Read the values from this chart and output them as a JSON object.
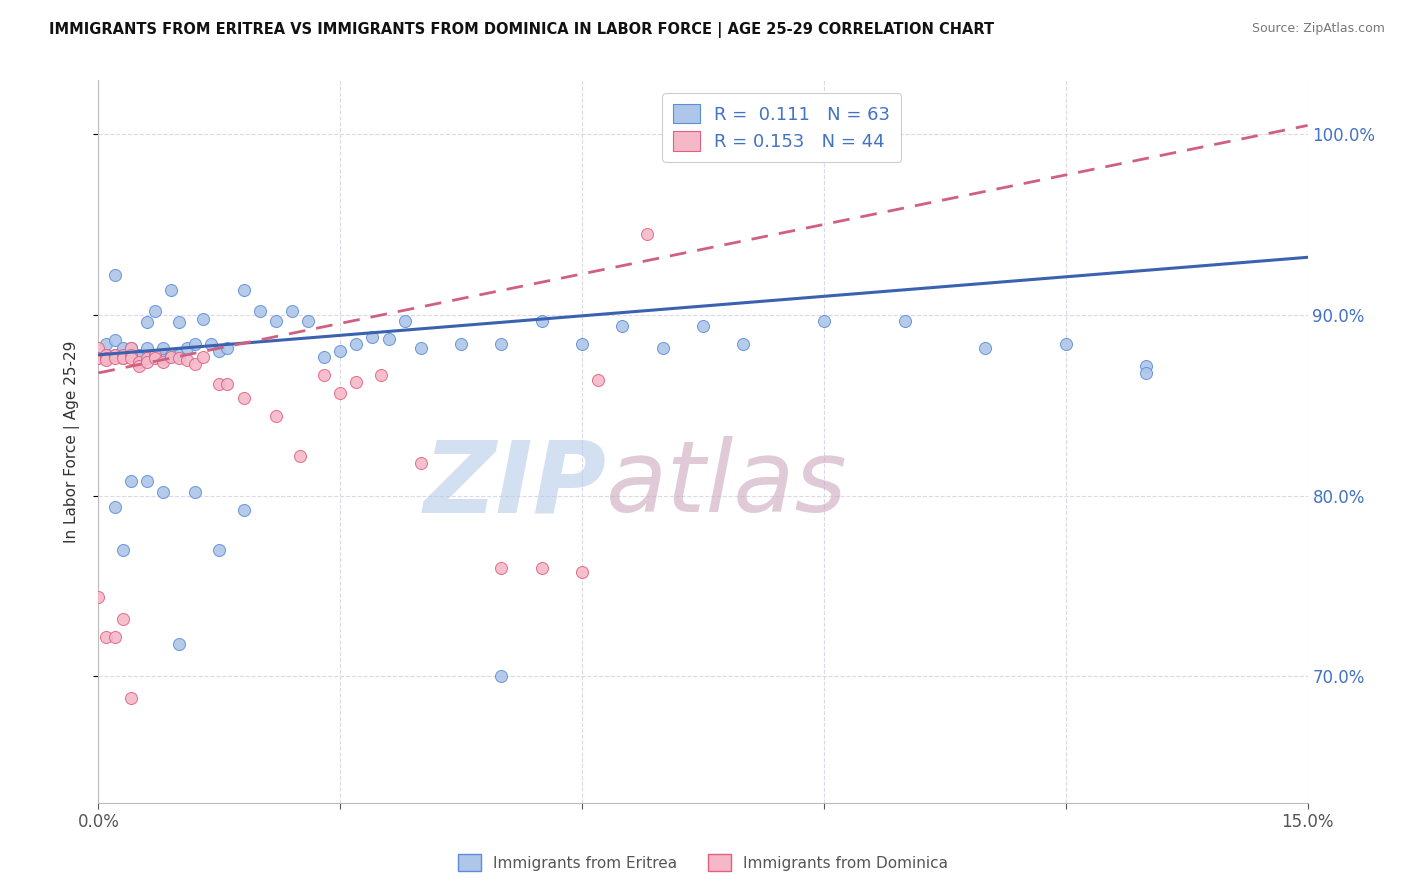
{
  "title": "IMMIGRANTS FROM ERITREA VS IMMIGRANTS FROM DOMINICA IN LABOR FORCE | AGE 25-29 CORRELATION CHART",
  "source": "Source: ZipAtlas.com",
  "ylabel": "In Labor Force | Age 25-29",
  "xlim": [
    0.0,
    0.15
  ],
  "ylim": [
    0.63,
    1.03
  ],
  "xticks": [
    0.0,
    0.03,
    0.06,
    0.09,
    0.12,
    0.15
  ],
  "yticks": [
    0.7,
    0.8,
    0.9,
    1.0
  ],
  "blue_fill": "#aec6e8",
  "blue_edge": "#5b8dd9",
  "pink_fill": "#f5b8c8",
  "pink_edge": "#e06080",
  "blue_line_color": "#3a62b0",
  "pink_line_color": "#d06080",
  "legend_R_blue": "0.111",
  "legend_N_blue": "63",
  "legend_R_pink": "0.153",
  "legend_N_pink": "44",
  "watermark": "ZIPatlas",
  "watermark_color_zip": "#b0c8e8",
  "watermark_color_atlas": "#c8a0b8",
  "grid_color": "#ddd8e8",
  "right_axis_color": "#4472c4",
  "label_color": "#555555",
  "blue_x": [
    0.001,
    0.001,
    0.002,
    0.002,
    0.002,
    0.003,
    0.003,
    0.004,
    0.004,
    0.005,
    0.005,
    0.006,
    0.006,
    0.007,
    0.007,
    0.008,
    0.008,
    0.009,
    0.009,
    0.01,
    0.01,
    0.011,
    0.012,
    0.013,
    0.014,
    0.015,
    0.016,
    0.018,
    0.02,
    0.022,
    0.024,
    0.026,
    0.028,
    0.03,
    0.032,
    0.034,
    0.036,
    0.038,
    0.04,
    0.045,
    0.05,
    0.055,
    0.06,
    0.065,
    0.07,
    0.075,
    0.08,
    0.09,
    0.1,
    0.11,
    0.12,
    0.13,
    0.002,
    0.003,
    0.004,
    0.006,
    0.008,
    0.01,
    0.012,
    0.015,
    0.018,
    0.05,
    0.13
  ],
  "blue_y": [
    0.878,
    0.884,
    0.922,
    0.886,
    0.878,
    0.876,
    0.882,
    0.878,
    0.882,
    0.878,
    0.876,
    0.882,
    0.896,
    0.878,
    0.902,
    0.876,
    0.882,
    0.878,
    0.914,
    0.878,
    0.896,
    0.882,
    0.884,
    0.898,
    0.884,
    0.88,
    0.882,
    0.914,
    0.902,
    0.897,
    0.902,
    0.897,
    0.877,
    0.88,
    0.884,
    0.888,
    0.887,
    0.897,
    0.882,
    0.884,
    0.884,
    0.897,
    0.884,
    0.894,
    0.882,
    0.894,
    0.884,
    0.897,
    0.897,
    0.882,
    0.884,
    0.872,
    0.794,
    0.77,
    0.808,
    0.808,
    0.802,
    0.718,
    0.802,
    0.77,
    0.792,
    0.7,
    0.868
  ],
  "pink_x": [
    0.0,
    0.0,
    0.001,
    0.001,
    0.001,
    0.002,
    0.002,
    0.003,
    0.003,
    0.004,
    0.004,
    0.004,
    0.005,
    0.005,
    0.006,
    0.006,
    0.007,
    0.007,
    0.008,
    0.009,
    0.01,
    0.011,
    0.012,
    0.013,
    0.015,
    0.016,
    0.018,
    0.022,
    0.025,
    0.028,
    0.03,
    0.032,
    0.035,
    0.04,
    0.05,
    0.055,
    0.06,
    0.062,
    0.0,
    0.001,
    0.002,
    0.003,
    0.004,
    0.068
  ],
  "pink_y": [
    0.882,
    0.876,
    0.878,
    0.876,
    0.875,
    0.878,
    0.876,
    0.878,
    0.876,
    0.882,
    0.878,
    0.876,
    0.874,
    0.872,
    0.876,
    0.874,
    0.878,
    0.876,
    0.874,
    0.877,
    0.876,
    0.875,
    0.873,
    0.877,
    0.862,
    0.862,
    0.854,
    0.844,
    0.822,
    0.867,
    0.857,
    0.863,
    0.867,
    0.818,
    0.76,
    0.76,
    0.758,
    0.864,
    0.744,
    0.722,
    0.722,
    0.732,
    0.688,
    0.945
  ],
  "blue_trend_x0": 0.0,
  "blue_trend_x1": 0.15,
  "blue_trend_y0": 0.878,
  "blue_trend_y1": 0.932,
  "pink_trend_x0": 0.0,
  "pink_trend_x1": 0.15,
  "pink_trend_y0": 0.868,
  "pink_trend_y1": 1.005
}
